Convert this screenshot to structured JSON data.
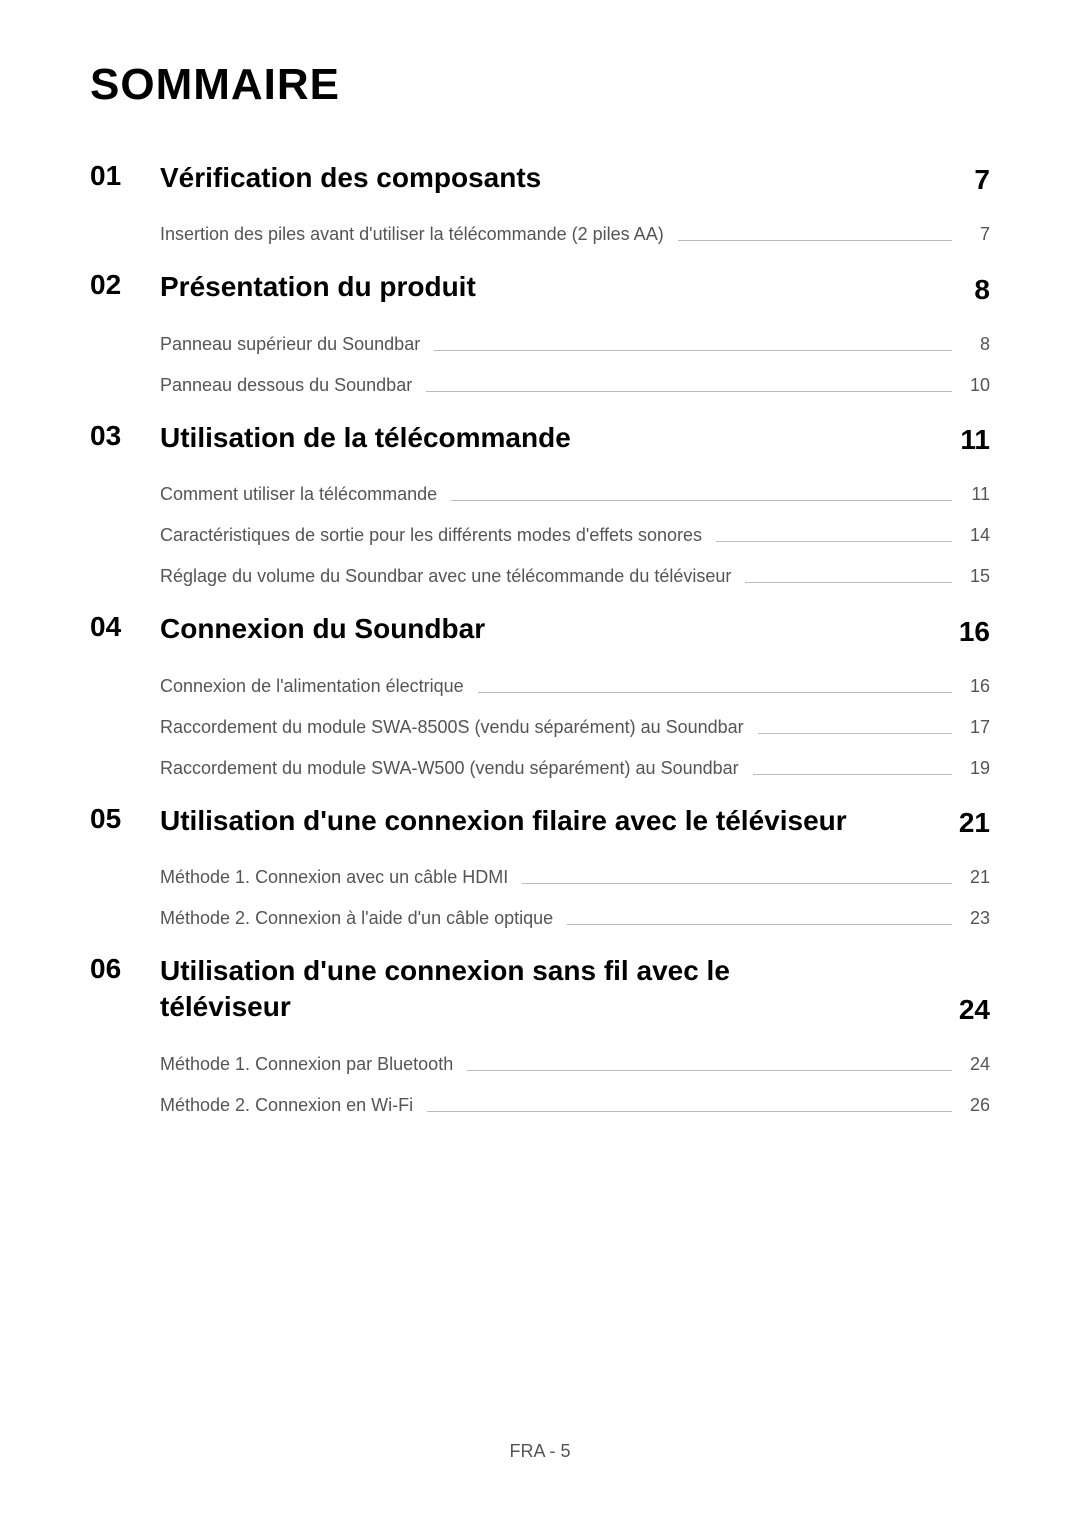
{
  "title": "SOMMAIRE",
  "footer": "FRA - 5",
  "sections": [
    {
      "number": "01",
      "title": "Vérification des composants",
      "page": "7",
      "items": [
        {
          "text": "Insertion des piles avant d'utiliser la télécommande (2 piles AA)",
          "page": "7"
        }
      ]
    },
    {
      "number": "02",
      "title": "Présentation du produit",
      "page": "8",
      "items": [
        {
          "text": "Panneau supérieur du Soundbar",
          "page": "8"
        },
        {
          "text": "Panneau dessous du Soundbar",
          "page": "10"
        }
      ]
    },
    {
      "number": "03",
      "title": "Utilisation de la télécommande",
      "page": "11",
      "items": [
        {
          "text": "Comment utiliser la télécommande",
          "page": "11"
        },
        {
          "text": "Caractéristiques de sortie pour les différents modes d'effets sonores",
          "page": "14"
        },
        {
          "text": "Réglage du volume du Soundbar avec une télécommande du téléviseur",
          "page": "15"
        }
      ]
    },
    {
      "number": "04",
      "title": "Connexion du Soundbar",
      "page": "16",
      "items": [
        {
          "text": "Connexion de l'alimentation électrique",
          "page": "16"
        },
        {
          "text": "Raccordement du module SWA-8500S (vendu séparément) au Soundbar",
          "page": "17"
        },
        {
          "text": "Raccordement du module SWA-W500 (vendu séparément) au Soundbar",
          "page": "19"
        }
      ]
    },
    {
      "number": "05",
      "title": "Utilisation d'une connexion filaire avec le téléviseur",
      "page": "21",
      "items": [
        {
          "text": "Méthode 1. Connexion avec un câble HDMI",
          "page": "21"
        },
        {
          "text": "Méthode 2. Connexion à l'aide d'un câble optique",
          "page": "23"
        }
      ]
    },
    {
      "number": "06",
      "title": "Utilisation d'une connexion sans fil avec le téléviseur",
      "page": "24",
      "items": [
        {
          "text": "Méthode 1. Connexion par Bluetooth",
          "page": "24"
        },
        {
          "text": "Méthode 2. Connexion en Wi-Fi",
          "page": "26"
        }
      ]
    }
  ]
}
